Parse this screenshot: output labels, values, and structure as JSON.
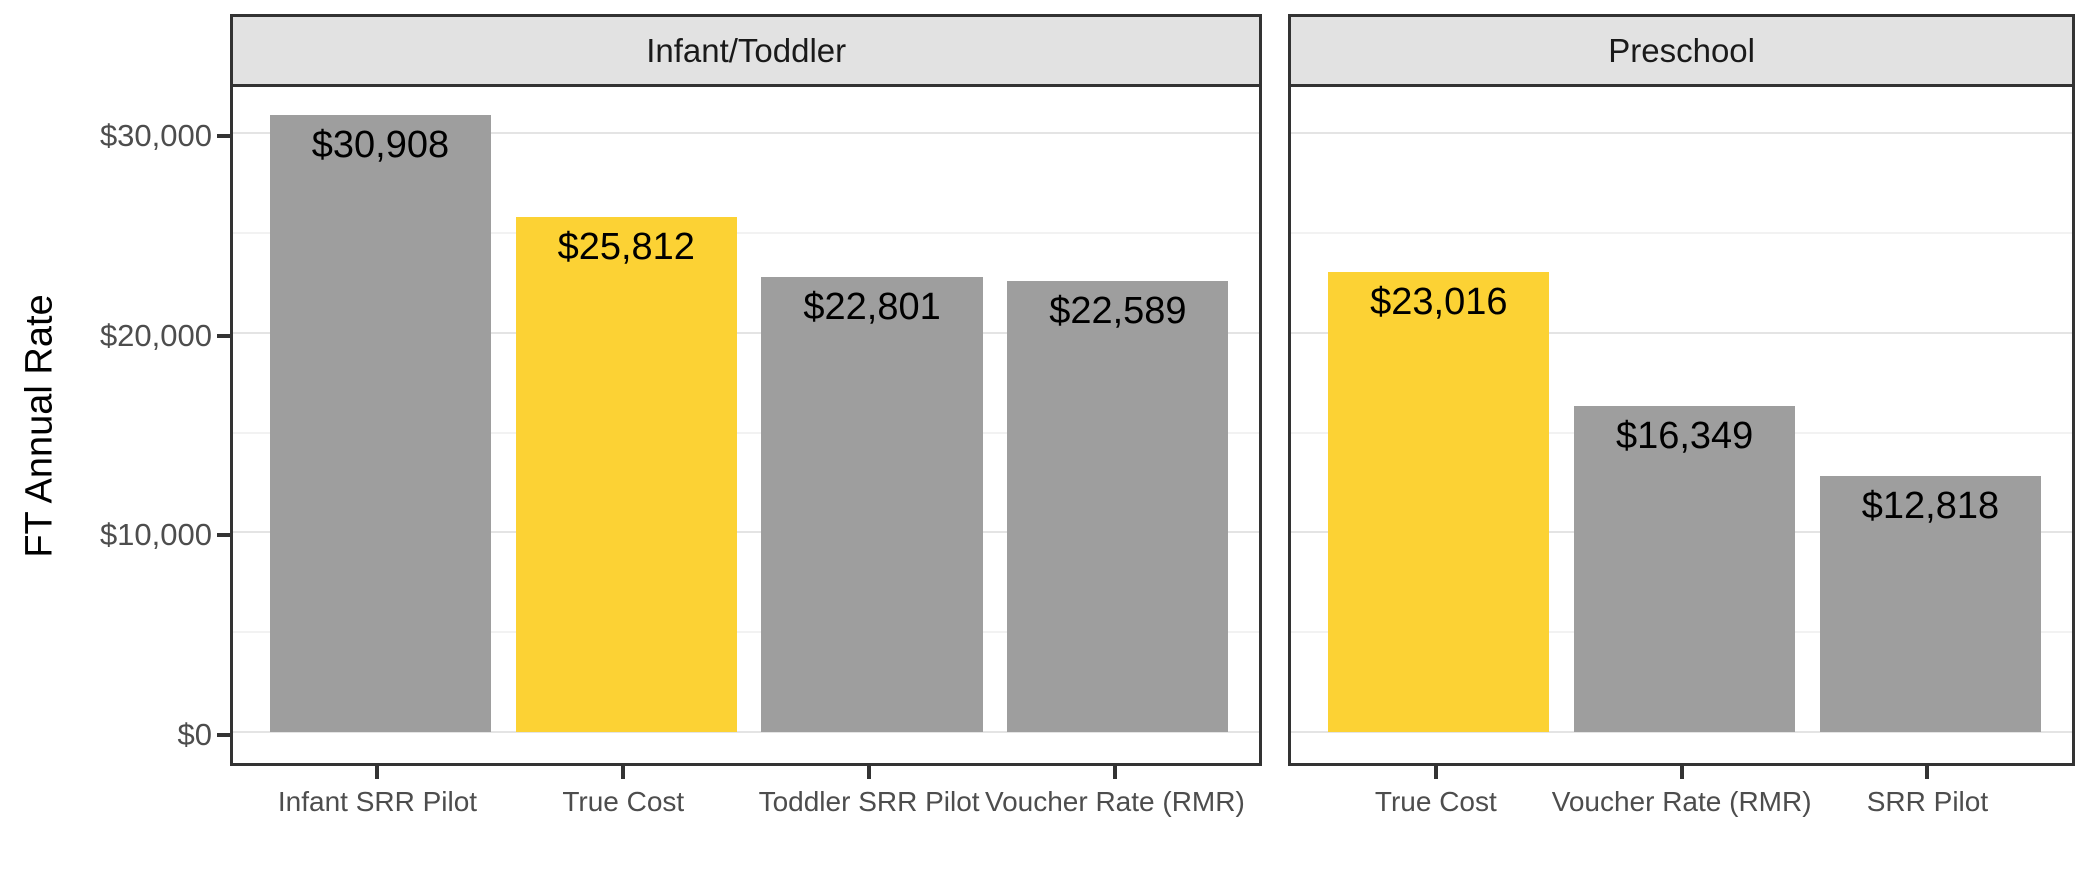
{
  "chart_data": {
    "type": "bar",
    "title": "",
    "xlabel": "",
    "ylabel": "FT Annual Rate",
    "ylim": [
      0,
      30908
    ],
    "y_expansion_mult": 0.05,
    "grid": "horizontal major+minor, no vertical",
    "legend": "none",
    "y_ticks": [
      {
        "value": 0,
        "label": "$0"
      },
      {
        "value": 10000,
        "label": "$10,000"
      },
      {
        "value": 20000,
        "label": "$20,000"
      },
      {
        "value": 30000,
        "label": "$30,000"
      }
    ],
    "y_minor_ticks": [
      5000,
      15000,
      25000
    ],
    "colors": {
      "default_bar": "#9e9e9e",
      "highlight_bar": "#fcd234",
      "strip_fill": "#e2e2e2",
      "panel_border": "#333333",
      "grid_major": "#e4e4e4",
      "grid_minor": "#f2f2f2",
      "axis_text": "#4d4d4d",
      "value_label_text": "#000000"
    },
    "facets": [
      {
        "label": "Infant/Toddler",
        "categories": [
          "Infant SRR Pilot",
          "True Cost",
          "Toddler SRR Pilot",
          "Voucher Rate (RMR)"
        ],
        "bars": [
          {
            "category": "Infant SRR Pilot",
            "value": 30908,
            "value_label": "$30,908",
            "color": "default"
          },
          {
            "category": "True Cost",
            "value": 25812,
            "value_label": "$25,812",
            "color": "highlight"
          },
          {
            "category": "Toddler SRR Pilot",
            "value": 22801,
            "value_label": "$22,801",
            "color": "default"
          },
          {
            "category": "Voucher Rate (RMR)",
            "value": 22589,
            "value_label": "$22,589",
            "color": "default"
          }
        ]
      },
      {
        "label": "Preschool",
        "categories": [
          "True Cost",
          "Voucher Rate (RMR)",
          "SRR Pilot"
        ],
        "bars": [
          {
            "category": "True Cost",
            "value": 23016,
            "value_label": "$23,016",
            "color": "highlight"
          },
          {
            "category": "Voucher Rate (RMR)",
            "value": 16349,
            "value_label": "$16,349",
            "color": "default"
          },
          {
            "category": "SRR Pilot",
            "value": 12818,
            "value_label": "$12,818",
            "color": "default"
          }
        ]
      }
    ]
  }
}
